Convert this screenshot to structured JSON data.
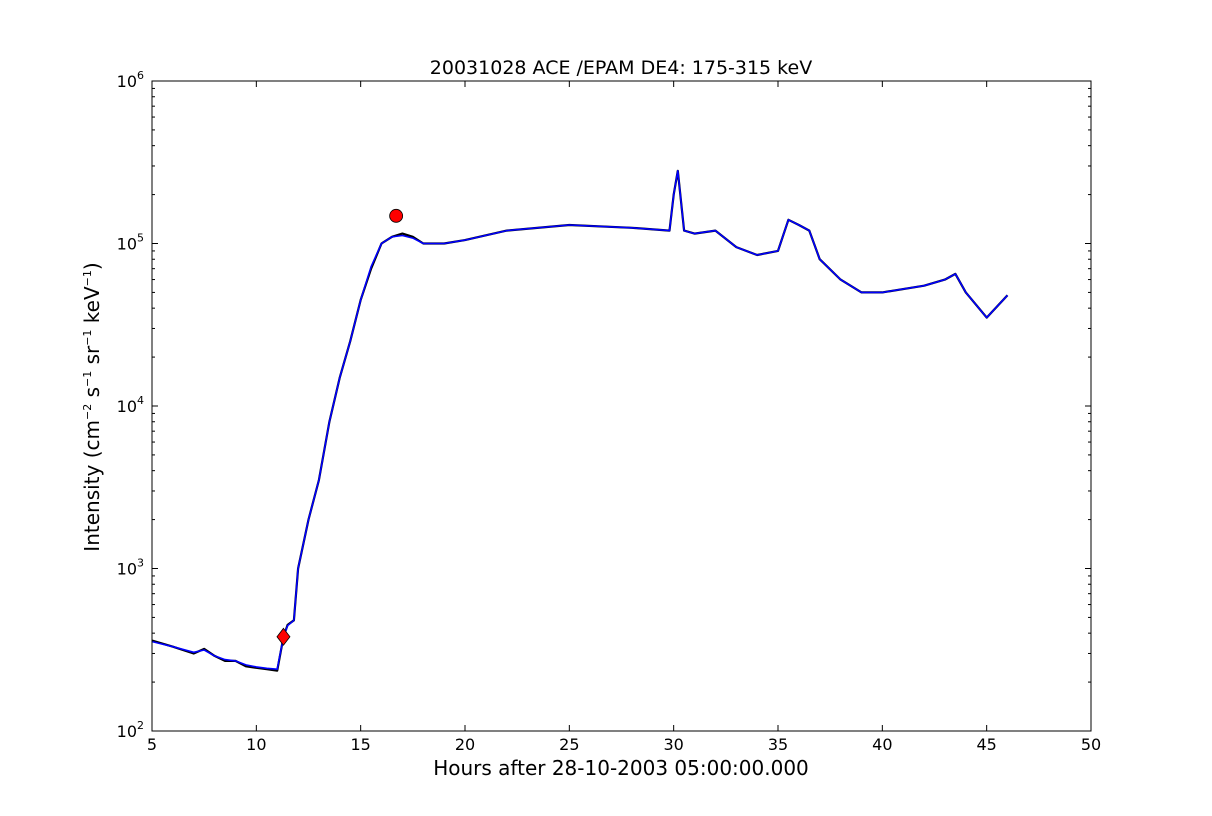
{
  "chart_data": {
    "type": "line",
    "title": "20031028 ACE /EPAM DE4: 175-315 keV",
    "xlabel": "Hours after 28-10-2003 05:00:00.000",
    "ylabel": {
      "prefix": "Intensity (cm",
      "sup1": "−2",
      "mid1": " s",
      "sup2": "−1",
      "mid2": " sr",
      "sup3": "−1",
      "mid3": " keV",
      "sup4": "−1",
      "suffix": ")"
    },
    "xlim": [
      5,
      50
    ],
    "ylim": [
      100,
      1000000
    ],
    "yscale": "log",
    "grid": false,
    "x_ticks": [
      "5",
      "10",
      "15",
      "20",
      "25",
      "30",
      "35",
      "40",
      "45",
      "50"
    ],
    "y_ticks": [
      {
        "base": "10",
        "exp": "2"
      },
      {
        "base": "10",
        "exp": "3"
      },
      {
        "base": "10",
        "exp": "4"
      },
      {
        "base": "10",
        "exp": "5"
      },
      {
        "base": "10",
        "exp": "6"
      }
    ],
    "series": [
      {
        "role": "raw",
        "color": "#000000",
        "x": [
          5.0,
          6.0,
          7.0,
          7.5,
          8.0,
          8.5,
          9.0,
          9.5,
          10.0,
          10.5,
          11.0,
          11.3,
          11.5,
          11.8,
          12.0,
          12.5,
          13.0,
          13.5,
          14.0,
          14.5,
          15.0,
          15.5,
          16.0,
          16.5,
          17.0,
          17.5,
          18.0,
          19.0,
          20.0,
          22.0,
          25.0,
          28.0,
          29.8,
          30.0,
          30.2,
          30.5,
          31.0,
          32.0,
          33.0,
          34.0,
          35.0,
          35.5,
          36.0,
          36.5,
          37.0,
          38.0,
          39.0,
          40.0,
          42.0,
          43.0,
          43.5,
          44.0,
          45.0,
          46.0
        ],
        "y": [
          360,
          330,
          300,
          320,
          290,
          270,
          270,
          250,
          245,
          240,
          235,
          380,
          450,
          480,
          1000,
          2000,
          3500,
          8000,
          15000,
          25000,
          45000,
          70000,
          100000,
          110000,
          115000,
          110000,
          100000,
          100000,
          105000,
          120000,
          130000,
          125000,
          120000,
          200000,
          280000,
          120000,
          115000,
          120000,
          95000,
          85000,
          90000,
          140000,
          130000,
          120000,
          80000,
          60000,
          50000,
          50000,
          55000,
          60000,
          65000,
          50000,
          35000,
          48000
        ]
      },
      {
        "role": "smoothed",
        "color": "#0000ff",
        "x": [
          5.0,
          6.0,
          7.0,
          7.5,
          8.0,
          8.5,
          9.0,
          9.5,
          10.0,
          10.5,
          11.0,
          11.3,
          11.5,
          11.8,
          12.0,
          12.5,
          13.0,
          13.5,
          14.0,
          14.5,
          15.0,
          15.5,
          16.0,
          16.5,
          17.0,
          17.5,
          18.0,
          19.0,
          20.0,
          22.0,
          25.0,
          28.0,
          29.8,
          30.0,
          30.2,
          30.5,
          31.0,
          32.0,
          33.0,
          34.0,
          35.0,
          35.5,
          36.0,
          36.5,
          37.0,
          38.0,
          39.0,
          40.0,
          42.0,
          43.0,
          43.5,
          44.0,
          45.0,
          46.0
        ],
        "y": [
          355,
          330,
          305,
          315,
          290,
          275,
          270,
          255,
          248,
          243,
          240,
          380,
          445,
          480,
          1000,
          2000,
          3500,
          8000,
          15000,
          25000,
          45000,
          72000,
          100000,
          110000,
          112000,
          108000,
          100000,
          100000,
          105000,
          120000,
          130000,
          125000,
          120000,
          200000,
          280000,
          120000,
          115000,
          120000,
          95000,
          85000,
          90000,
          140000,
          130000,
          120000,
          80000,
          60000,
          50000,
          50000,
          55000,
          60000,
          65000,
          50000,
          35000,
          48000
        ]
      }
    ],
    "markers": [
      {
        "shape": "diamond",
        "color": "#ff0000",
        "x": 11.3,
        "y": 380
      },
      {
        "shape": "circle",
        "color": "#ff0000",
        "x": 16.7,
        "y": 148000
      }
    ]
  }
}
